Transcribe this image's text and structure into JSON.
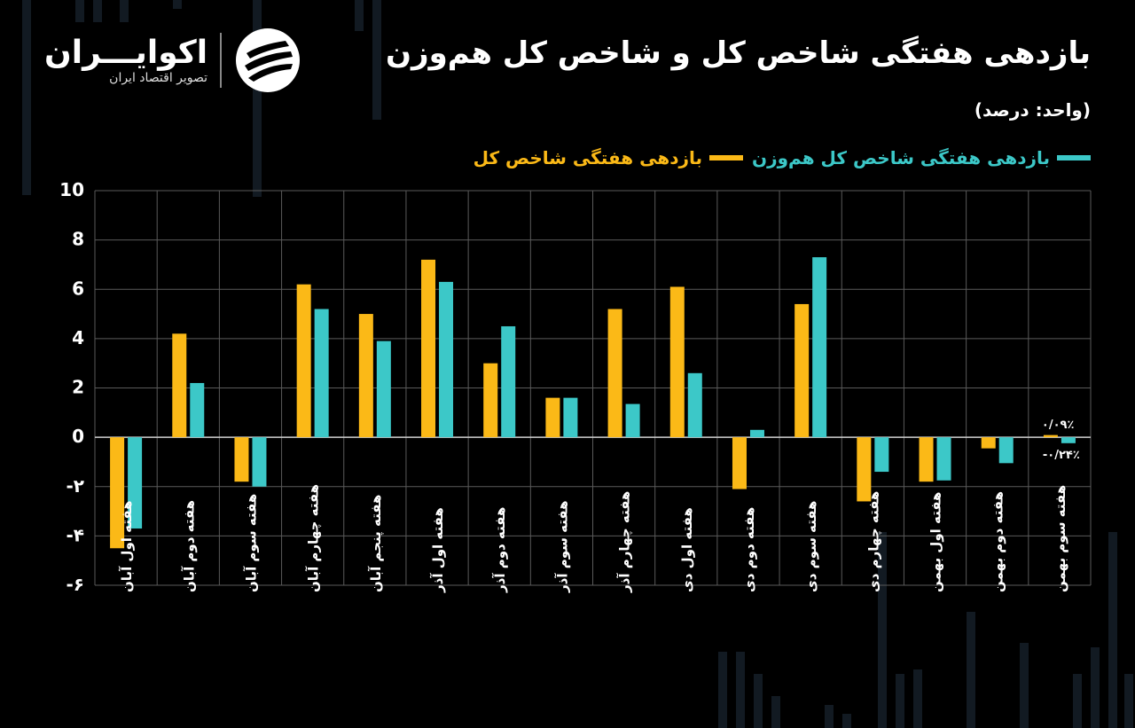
{
  "header": {
    "title": "بازدهی هفتگی شاخص کل و شاخص کل هم‌وزن",
    "unit": "(واحد: درصد)"
  },
  "logo": {
    "name": "اکوایـــران",
    "subtitle": "تصویر اقتصاد ایران"
  },
  "legend": {
    "series_equal": "بازدهی هفتگی شاخص کل هم‌وزن",
    "series_total": "بازدهی هفتگی شاخص کل"
  },
  "colors": {
    "background": "#000000",
    "total": "#FBB917",
    "equal": "#3CC8C8",
    "grid": "#5A5A5A",
    "text": "#FFFFFF"
  },
  "chart_data": {
    "type": "bar",
    "title": "بازدهی هفتگی شاخص کل و شاخص کل هم‌وزن",
    "ylabel": "(واحد: درصد)",
    "ylim": [
      -6,
      10
    ],
    "yticks": [
      10,
      8,
      6,
      4,
      2,
      0,
      -2,
      -4,
      -6
    ],
    "ytick_labels": [
      "10",
      "8",
      "6",
      "4",
      "2",
      "0",
      "-۲",
      "-۴",
      "-۶"
    ],
    "grid": true,
    "legend_position": "top-right",
    "categories": [
      "هفته اول آبان",
      "هفته دوم آبان",
      "هفته سوم آبان",
      "هفته چهارم آبان",
      "هفته پنجم آبان",
      "هفته اول آذر",
      "هفته دوم آذر",
      "هفته سوم آذر",
      "هفته چهارم آذر",
      "هفته اول دی",
      "هفته دوم دی",
      "هفته سوم دی",
      "هفته چهارم دی",
      "هفته اول بهمن",
      "هفته دوم بهمن",
      "هفته سوم بهمن"
    ],
    "series": [
      {
        "name": "بازدهی هفتگی شاخص کل",
        "color": "#FBB917",
        "values": [
          -4.5,
          4.2,
          -1.8,
          6.2,
          5.0,
          7.2,
          3.0,
          1.6,
          5.2,
          6.1,
          -2.1,
          5.4,
          -2.6,
          -1.8,
          -0.45,
          0.09
        ]
      },
      {
        "name": "بازدهی هفتگی شاخص کل هم‌وزن",
        "color": "#3CC8C8",
        "values": [
          -3.7,
          2.2,
          -2.0,
          5.2,
          3.9,
          6.3,
          4.5,
          1.6,
          1.35,
          2.6,
          0.3,
          7.3,
          -1.4,
          -1.75,
          -1.05,
          -0.24
        ]
      }
    ],
    "annotations": [
      {
        "category": "هفته سوم بهمن",
        "series": "بازدهی هفتگی شاخص کل",
        "text": "۰/۰۹٪"
      },
      {
        "category": "هفته سوم بهمن",
        "series": "بازدهی هفتگی شاخص کل هم‌وزن",
        "text": "-۰/۲۴٪"
      }
    ]
  }
}
